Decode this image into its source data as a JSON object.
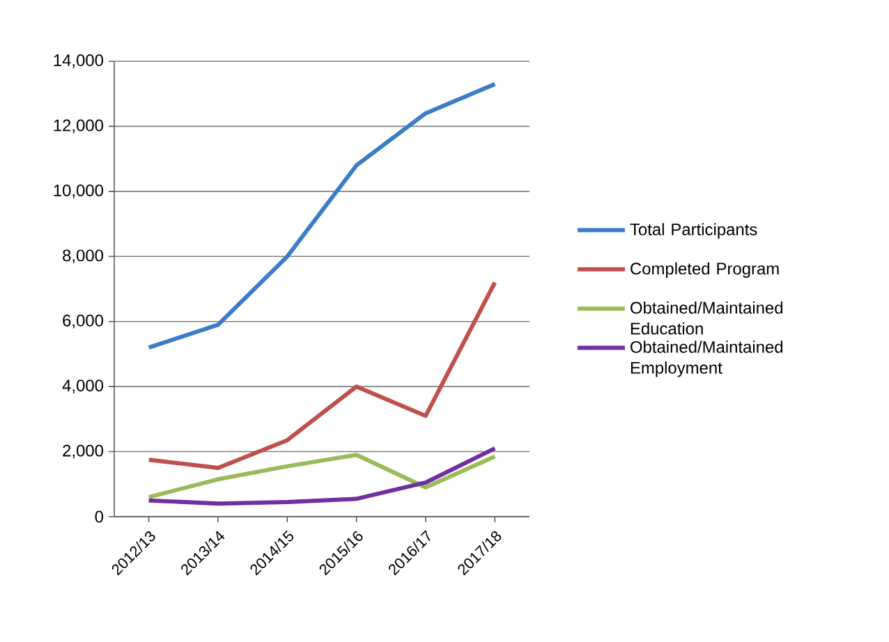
{
  "chart_data": {
    "type": "line",
    "categories": [
      "2012/13",
      "2013/14",
      "2014/15",
      "2015/16",
      "2016/17",
      "2017/18"
    ],
    "series": [
      {
        "name": "Total Participants",
        "color": "#3b7dc6",
        "values": [
          5200,
          5900,
          8000,
          10800,
          12400,
          13300
        ]
      },
      {
        "name": "Completed Program",
        "color": "#c0504d",
        "values": [
          1750,
          1500,
          2350,
          4000,
          3100,
          7200
        ]
      },
      {
        "name": "Obtained/Maintained Education",
        "color": "#9bbb59",
        "values": [
          600,
          1150,
          1550,
          1900,
          900,
          1850
        ]
      },
      {
        "name": "Obtained/Maintained Employment",
        "color": "#7030a0",
        "values": [
          500,
          400,
          450,
          550,
          1050,
          2100
        ]
      }
    ],
    "ylim": [
      0,
      14000
    ],
    "yticks": [
      {
        "value": 0,
        "label": "0"
      },
      {
        "value": 2000,
        "label": "2,000"
      },
      {
        "value": 4000,
        "label": "4,000"
      },
      {
        "value": 6000,
        "label": "6,000"
      },
      {
        "value": 8000,
        "label": "8,000"
      },
      {
        "value": 10000,
        "label": "10,000"
      },
      {
        "value": 12000,
        "label": "12,000"
      },
      {
        "value": 14000,
        "label": "14,000"
      }
    ],
    "grid": "y",
    "legend": "right",
    "marker": "none",
    "line_style": "solid"
  }
}
